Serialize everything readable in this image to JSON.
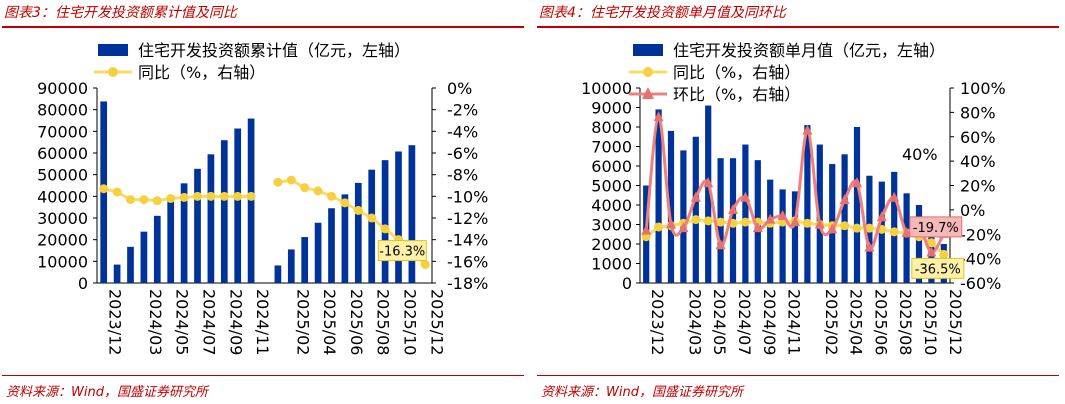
{
  "charts": [
    {
      "caption": "图表3：住宅开发投资额累计值及同比",
      "source": "资料来源：Wind，国盛证券研究所"
    },
    {
      "caption": "图表4：住宅开发投资额单月值及同环比",
      "source": "资料来源：Wind，国盛证券研究所"
    }
  ],
  "colors": {
    "bar": "#003399",
    "yoy": "#ffd966",
    "yoy_marker": "#f5d140",
    "mom": "#f08080",
    "mom_marker": "#e87070",
    "accent_red": "#c00000"
  },
  "chart_data": [
    {
      "type": "bar",
      "x": [
        "2023/12",
        "2024/01",
        "2024/02",
        "2024/03",
        "2024/04",
        "2024/05",
        "2024/06",
        "2024/07",
        "2024/08",
        "2024/09",
        "2024/10",
        "2024/11",
        "2024/12",
        "2025/01",
        "2025/02",
        "2025/03",
        "2025/04",
        "2025/05",
        "2025/06",
        "2025/07",
        "2025/08",
        "2025/09",
        "2025/10",
        "2025/11",
        "2025/12"
      ],
      "x_tick_labels": [
        "2023/12",
        "2024/03",
        "2024/05",
        "2024/07",
        "2024/09",
        "2024/11",
        "2025/02",
        "2025/04",
        "2025/06",
        "2025/08",
        "2025/10",
        "2025/12"
      ],
      "series": [
        {
          "name": "住宅开发投资额累计值（亿元，左轴）",
          "type": "bar",
          "axis": "left",
          "values": [
            83800,
            8500,
            16700,
            23700,
            31000,
            39000,
            46000,
            52700,
            59400,
            65900,
            71300,
            75900,
            null,
            8100,
            15500,
            21200,
            27800,
            34500,
            40900,
            46200,
            52300,
            56700,
            60700,
            63600,
            null
          ]
        },
        {
          "name": "同比（%，右轴）",
          "type": "line",
          "axis": "right",
          "values": [
            -9.3,
            -9.6,
            -10.3,
            -10.3,
            -10.4,
            -10.2,
            -10.1,
            -10.0,
            -10.0,
            -10.0,
            -10.0,
            -10.0,
            null,
            -8.7,
            -8.5,
            -9.2,
            -9.5,
            -10.0,
            -10.6,
            -11.3,
            -12.0,
            -13.0,
            -14.0,
            -15.0,
            -16.3
          ]
        }
      ],
      "annotations": [
        "-16.3%"
      ],
      "ylim_left": [
        0,
        90000
      ],
      "ylim_right": [
        -18,
        0
      ],
      "y_ticks_left": [
        "0",
        "10000",
        "20000",
        "30000",
        "40000",
        "50000",
        "60000",
        "70000",
        "80000",
        "90000"
      ],
      "y_ticks_right": [
        "-18%",
        "-16%",
        "-14%",
        "-12%",
        "-10%",
        "-8%",
        "-6%",
        "-4%",
        "-2%",
        "0%"
      ]
    },
    {
      "type": "bar",
      "x": [
        "2023/12",
        "2024/01",
        "2024/02",
        "2024/03",
        "2024/04",
        "2024/05",
        "2024/06",
        "2024/07",
        "2024/08",
        "2024/09",
        "2024/10",
        "2024/11",
        "2024/12",
        "2025/01",
        "2025/02",
        "2025/03",
        "2025/04",
        "2025/05",
        "2025/06",
        "2025/07",
        "2025/08",
        "2025/09",
        "2025/10",
        "2025/11",
        "2025/12"
      ],
      "x_tick_labels": [
        "2023/12",
        "2024/03",
        "2024/05",
        "2024/07",
        "2024/09",
        "2024/11",
        "2025/02",
        "2025/04",
        "2025/06",
        "2025/08",
        "2025/10",
        "2025/12"
      ],
      "series": [
        {
          "name": "住宅开发投资额单月值（亿元，左轴）",
          "type": "bar",
          "axis": "left",
          "values": [
            5000,
            8900,
            7800,
            6800,
            7500,
            9100,
            6400,
            6400,
            7100,
            6300,
            5300,
            4800,
            4700,
            8100,
            7100,
            6100,
            6600,
            8000,
            5500,
            5200,
            5700,
            4600,
            4000,
            2600,
            2000
          ]
        },
        {
          "name": "同比（%，右轴）",
          "type": "line",
          "axis": "right",
          "values": [
            -22.0,
            -14.0,
            -13.0,
            -11.0,
            -8.0,
            -9.0,
            -10.0,
            -11.0,
            -10.0,
            -10.0,
            -11.0,
            -10.0,
            -9.0,
            -11.0,
            -12.0,
            -13.0,
            -13.0,
            -15.0,
            -15.0,
            -16.0,
            -18.0,
            -19.0,
            -22.0,
            -27.0,
            -36.5
          ]
        },
        {
          "name": "环比（%，右轴）",
          "type": "line",
          "axis": "right",
          "values": [
            -17.0,
            76.0,
            -12.0,
            -15.0,
            10.0,
            22.0,
            -29.0,
            0.0,
            10.0,
            -15.0,
            -8.0,
            -5.0,
            -10.0,
            65.0,
            -12.0,
            -16.0,
            8.0,
            22.0,
            -31.0,
            -6.0,
            10.0,
            -19.0,
            -13.0,
            -35.0,
            -19.7
          ]
        }
      ],
      "annotations": [
        "40%",
        "-19.7%",
        "-36.5%"
      ],
      "ylim_left": [
        0,
        10000
      ],
      "ylim_right": [
        -60,
        100
      ],
      "y_ticks_left": [
        "0",
        "1000",
        "2000",
        "3000",
        "4000",
        "5000",
        "6000",
        "7000",
        "8000",
        "9000",
        "10000"
      ],
      "y_ticks_right": [
        "-60%",
        "-40%",
        "-20%",
        "0%",
        "20%",
        "40%",
        "60%",
        "80%",
        "100%"
      ]
    }
  ]
}
